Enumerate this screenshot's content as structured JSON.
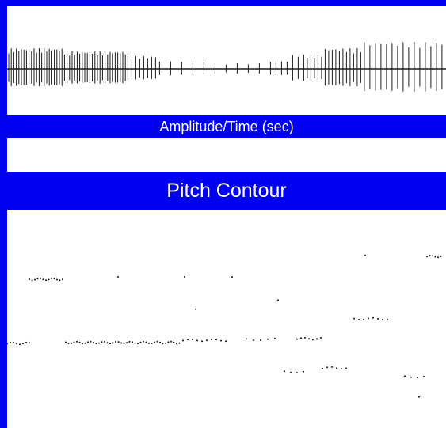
{
  "labels": {
    "amplitude_caption": "Amplitude/Time (sec)",
    "pitch_title": "Pitch Contour"
  },
  "colors": {
    "band_blue": "#0000f0",
    "band_text": "#ffffff",
    "waveform_ink": "#1a1a1a",
    "dot_ink": "#111111"
  }
}
